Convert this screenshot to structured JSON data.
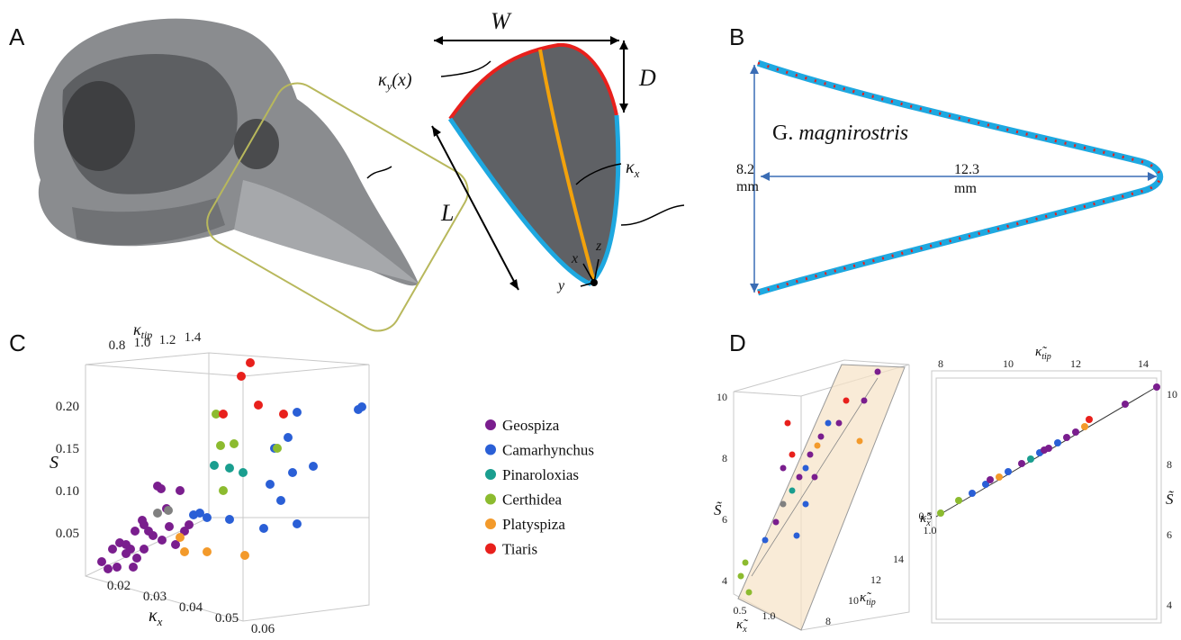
{
  "panels": {
    "A": {
      "label": "A",
      "width": "W",
      "depth": "D",
      "length": "L",
      "curvature_y": {
        "symbol": "κ",
        "sub": "y",
        "rest": "(x)"
      },
      "curvature_x": {
        "symbol": "κ",
        "sub": "x"
      },
      "axes": [
        "x",
        "y",
        "z"
      ]
    },
    "B": {
      "label": "B",
      "genus": "G.",
      "species": "magnirostris",
      "height": "8.2",
      "height_unit": "mm",
      "length": "12.3",
      "length_unit": "mm"
    },
    "C": {
      "label": "C",
      "top_axis": {
        "symbol": "κ",
        "sub": "tip"
      },
      "top_ticks": [
        "0.8",
        "1.0",
        "1.2",
        "1.4"
      ],
      "y_axis": "S",
      "y_ticks": [
        "0.20",
        "0.15",
        "0.10",
        "0.05"
      ],
      "x_axis": {
        "symbol": "κ",
        "sub": "x"
      },
      "x_ticks": [
        "0.02",
        "0.03",
        "0.04",
        "0.05",
        "0.06"
      ],
      "legend": [
        {
          "name": "Geospiza",
          "color": "#7a1e8e"
        },
        {
          "name": "Camarhynchus",
          "color": "#2a5fd6"
        },
        {
          "name": "Pinaroloxias",
          "color": "#1a9e8f"
        },
        {
          "name": "Certhidea",
          "color": "#8cbb2f"
        },
        {
          "name": "Platyspiza",
          "color": "#f39a2b"
        },
        {
          "name": "Tiaris",
          "color": "#e8201c"
        }
      ]
    },
    "D": {
      "label": "D",
      "left_y_axis": "S̃",
      "left_y_ticks": [
        "10",
        "8",
        "6",
        "4"
      ],
      "left_x_axis": {
        "symbol": "κ̃",
        "sub": "x"
      },
      "left_x_ticks": [
        "0.5",
        "1.0"
      ],
      "left_z_axis": {
        "symbol": "κ̃",
        "sub": "tip"
      },
      "left_z_ticks": [
        "14",
        "12",
        "10",
        "8"
      ],
      "right_top_axis": {
        "symbol": "κ̃",
        "sub": "tip"
      },
      "right_top_ticks": [
        "8",
        "10",
        "12",
        "14"
      ],
      "right_y_axis": "S̃",
      "right_y_ticks": [
        "10",
        "8",
        "6",
        "4"
      ],
      "right_x_axis": {
        "symbol": "κ̃",
        "sub": "x"
      },
      "right_x_ticks": [
        "0.5",
        "1.0"
      ]
    }
  }
}
